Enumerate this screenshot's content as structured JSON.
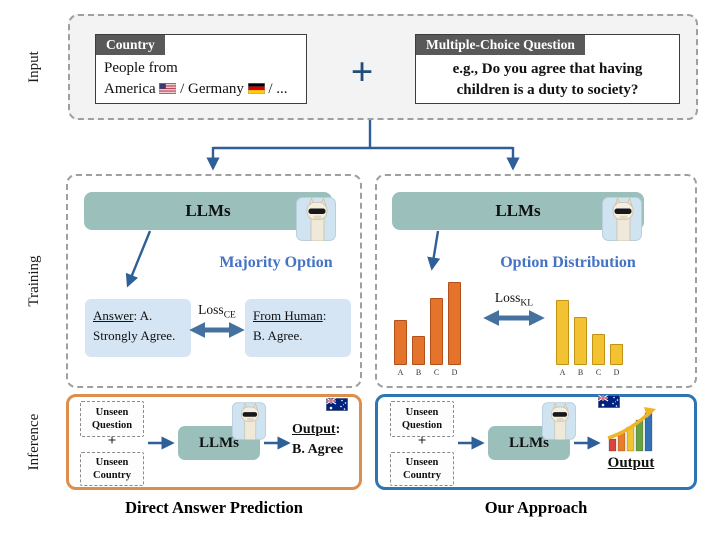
{
  "labels": {
    "input": "Input",
    "training": "Training",
    "inference": "Inference"
  },
  "input": {
    "country": {
      "header": "Country",
      "line1": "People from",
      "name1": "America",
      "sep1": "/ Germany",
      "sep2": "/ ..."
    },
    "plus": "+",
    "question": {
      "header": "Multiple-Choice Question",
      "line1": "e.g., Do you agree that having",
      "line2": "children is a duty to society?"
    }
  },
  "training": {
    "left": {
      "llm": "LLMs",
      "title": "Majority Option",
      "loss": "Loss",
      "loss_sub": "CE",
      "answer_label": "Answer",
      "answer_rest": ": A.",
      "answer_line2": "Strongly Agree.",
      "human_label": "From Human",
      "human_rest": ":",
      "human_line2": "B. Agree."
    },
    "right": {
      "llm": "LLMs",
      "title": "Option Distribution",
      "loss": "Loss",
      "loss_sub": "KL",
      "pred_chart": {
        "type": "bar",
        "categories": [
          "A",
          "B",
          "C",
          "D"
        ],
        "values": [
          52,
          34,
          78,
          97
        ],
        "color": "#E4742C",
        "border": "#B3501A"
      },
      "target_chart": {
        "type": "bar",
        "categories": [
          "A",
          "B",
          "C",
          "D"
        ],
        "values": [
          76,
          56,
          36,
          24
        ],
        "color": "#F2C233",
        "border": "#C29312"
      }
    }
  },
  "inference": {
    "left": {
      "unseen_question": "Unseen Question",
      "plus": "+",
      "unseen_country": "Unseen Country",
      "llm": "LLMs",
      "output_label": "Output",
      "output_colon": ":",
      "output_line2": "B. Agree",
      "caption": "Direct Answer Prediction"
    },
    "right": {
      "unseen_question": "Unseen Question",
      "plus": "+",
      "unseen_country": "Unseen Country",
      "llm": "LLMs",
      "output_label": "Output",
      "caption": "Our Approach"
    }
  },
  "icons": {
    "llama": "llama-with-sunglasses-icon",
    "us_flag": "us-flag-icon",
    "german_flag": "german-flag-icon",
    "australian_flag": "australian-flag-icon",
    "rising_chart": "ascending-bar-chart-icon",
    "double_arrow": "double-headed-arrow",
    "plus": "plus-sign"
  },
  "colors": {
    "teal_llm": "#9BC0BC",
    "arrow_blue": "#2F5F98",
    "double_arrow_blue": "#44719E",
    "title_blue": "#4472C4",
    "light_blue_box": "#D6E5F4",
    "tab_gray": "#595959",
    "orange_border": "#DD8E4D",
    "blue_border": "#2E75B6",
    "bar_orange": "#E4742C",
    "bar_yellow": "#F2C233"
  }
}
